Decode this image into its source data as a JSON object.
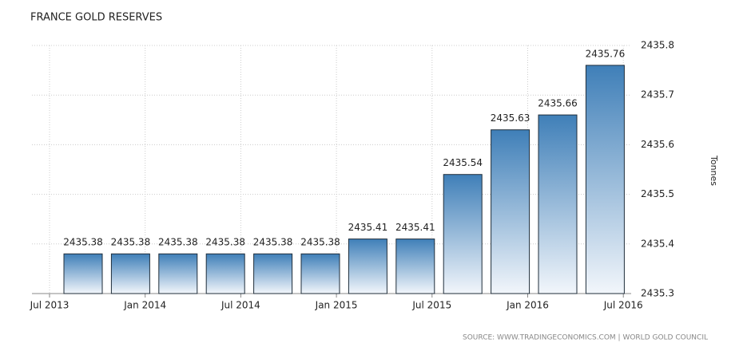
{
  "chart_data": {
    "type": "bar",
    "title": "FRANCE GOLD RESERVES",
    "categories": [
      null,
      null,
      null,
      null,
      null,
      null,
      null,
      null,
      null,
      null,
      null,
      null
    ],
    "values": [
      2435.38,
      2435.38,
      2435.38,
      2435.38,
      2435.38,
      2435.38,
      2435.41,
      2435.41,
      2435.54,
      2435.63,
      2435.66,
      2435.76
    ],
    "x_axis_labels": [
      "Jul 2013",
      "Jan 2014",
      "Jul 2014",
      "Jan 2015",
      "Jul 2015",
      "Jan 2016",
      "Jul 2016"
    ],
    "ylim": [
      2435.3,
      2435.8
    ],
    "yticks": [
      2435.3,
      2435.4,
      2435.5,
      2435.6,
      2435.7,
      2435.8
    ],
    "y_axis_label": "Tonnes",
    "y_axis_side": "right",
    "grid": true,
    "color_top": "#3f7fb8",
    "color_bottom": "#f2f6fb",
    "edge_color": "#1f2d3a",
    "source": "SOURCE: WWW.TRADINGECONOMICS.COM  |  WORLD GOLD COUNCIL"
  }
}
